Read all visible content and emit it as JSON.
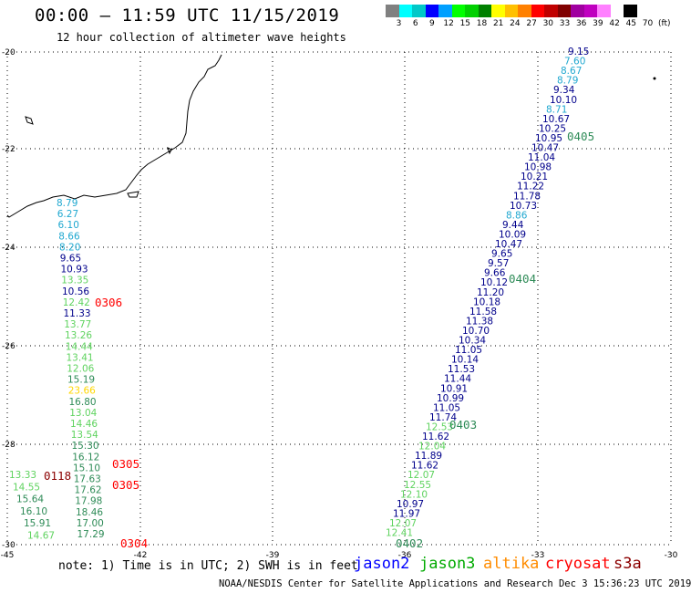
{
  "title": "00:00 – 11:59 UTC 11/15/2019",
  "subtitle": "12 hour collection of altimeter wave heights",
  "colorbar": {
    "colors": [
      "#808080",
      "#00ffff",
      "#00c8c8",
      "#0000ff",
      "#00a0ff",
      "#00ff00",
      "#00d000",
      "#008000",
      "#ffff00",
      "#ffc000",
      "#ff8000",
      "#ff0000",
      "#c00000",
      "#800000",
      "#a000a0",
      "#c000c0",
      "#ff80ff",
      "#ffffff",
      "#000000"
    ],
    "labels": [
      "3",
      "6",
      "9",
      "12",
      "15",
      "18",
      "21",
      "24",
      "27",
      "30",
      "33",
      "36",
      "39",
      "42",
      "45",
      "70"
    ],
    "unit": "(ft)"
  },
  "note": "note:  1) Time is in UTC;  2) SWH is in feet",
  "legend": [
    {
      "label": "jason2",
      "color": "#0000ff"
    },
    {
      "label": "jason3",
      "color": "#00aa00"
    },
    {
      "label": "altika",
      "color": "#ff8c00"
    },
    {
      "label": "cryosat",
      "color": "#ff0000"
    },
    {
      "label": "s3a",
      "color": "#8b0000"
    }
  ],
  "credit": "NOAA/NESDIS Center for Satellite Applications and Research    Dec  3 15:36:23 UTC 2019",
  "map": {
    "lon_range": [
      -45,
      -30
    ],
    "lat_range": [
      -30,
      -20
    ],
    "lon_ticks": [
      "-45",
      "-42",
      "-39",
      "-36",
      "-33",
      "-30"
    ],
    "lat_ticks": [
      "-20",
      "-22",
      "-24",
      "-26",
      "-28",
      "-30"
    ]
  },
  "obs_colors": {
    "jason2": "#00008b",
    "jason3": "#2e8b57",
    "altika": "#ffd700",
    "cryosat": "#ff0000",
    "s3a": "#8b0000",
    "light": "#5fd35f",
    "cyan": "#20a8d0"
  },
  "tracks": [
    {
      "name": "western-track",
      "values": [
        {
          "v": "8.79",
          "c": "cyan"
        },
        {
          "v": "6.27",
          "c": "cyan"
        },
        {
          "v": "6.10",
          "c": "cyan"
        },
        {
          "v": "8.66",
          "c": "cyan"
        },
        {
          "v": "8.20",
          "c": "cyan"
        },
        {
          "v": "9.65",
          "c": "jason2"
        },
        {
          "v": "10.93",
          "c": "jason2"
        },
        {
          "v": "13.35",
          "c": "light"
        },
        {
          "v": "10.56",
          "c": "jason2"
        },
        {
          "v": "12.42",
          "c": "light"
        },
        {
          "v": "11.33",
          "c": "jason2"
        },
        {
          "v": "13.77",
          "c": "light"
        },
        {
          "v": "13.26",
          "c": "light"
        },
        {
          "v": "14.44",
          "c": "light"
        },
        {
          "v": "13.41",
          "c": "light"
        },
        {
          "v": "12.06",
          "c": "light"
        },
        {
          "v": "15.19",
          "c": "jason3"
        },
        {
          "v": "23.66",
          "c": "altika"
        },
        {
          "v": "16.80",
          "c": "jason3"
        },
        {
          "v": "13.04",
          "c": "light"
        },
        {
          "v": "14.46",
          "c": "light"
        },
        {
          "v": "13.54",
          "c": "light"
        },
        {
          "v": "15.30",
          "c": "jason3"
        },
        {
          "v": "16.12",
          "c": "jason3"
        },
        {
          "v": "15.10",
          "c": "jason3"
        },
        {
          "v": "17.63",
          "c": "jason3"
        },
        {
          "v": "17.62",
          "c": "jason3"
        },
        {
          "v": "17.98",
          "c": "jason3"
        },
        {
          "v": "18.46",
          "c": "jason3"
        },
        {
          "v": "17.00",
          "c": "jason3"
        },
        {
          "v": "17.29",
          "c": "jason3"
        }
      ]
    },
    {
      "name": "eastern-track",
      "values": [
        {
          "v": "9.15",
          "c": "jason2"
        },
        {
          "v": "7.60",
          "c": "cyan"
        },
        {
          "v": "8.67",
          "c": "cyan"
        },
        {
          "v": "8.79",
          "c": "cyan"
        },
        {
          "v": "9.34",
          "c": "jason2"
        },
        {
          "v": "10.10",
          "c": "jason2"
        },
        {
          "v": "8.71",
          "c": "cyan"
        },
        {
          "v": "10.67",
          "c": "jason2"
        },
        {
          "v": "10.25",
          "c": "jason2"
        },
        {
          "v": "10.95",
          "c": "jason2"
        },
        {
          "v": "10.47",
          "c": "jason2"
        },
        {
          "v": "11.04",
          "c": "jason2"
        },
        {
          "v": "10.98",
          "c": "jason2"
        },
        {
          "v": "10.21",
          "c": "jason2"
        },
        {
          "v": "11.22",
          "c": "jason2"
        },
        {
          "v": "11.78",
          "c": "jason2"
        },
        {
          "v": "10.73",
          "c": "jason2"
        },
        {
          "v": "8.86",
          "c": "cyan"
        },
        {
          "v": "9.44",
          "c": "jason2"
        },
        {
          "v": "10.09",
          "c": "jason2"
        },
        {
          "v": "10.47",
          "c": "jason2"
        },
        {
          "v": "9.65",
          "c": "jason2"
        },
        {
          "v": "9.57",
          "c": "jason2"
        },
        {
          "v": "9.66",
          "c": "jason2"
        },
        {
          "v": "10.12",
          "c": "jason2"
        },
        {
          "v": "11.20",
          "c": "jason2"
        },
        {
          "v": "10.18",
          "c": "jason2"
        },
        {
          "v": "11.58",
          "c": "jason2"
        },
        {
          "v": "11.38",
          "c": "jason2"
        },
        {
          "v": "10.70",
          "c": "jason2"
        },
        {
          "v": "10.34",
          "c": "jason2"
        },
        {
          "v": "11.05",
          "c": "jason2"
        },
        {
          "v": "10.14",
          "c": "jason2"
        },
        {
          "v": "11.53",
          "c": "jason2"
        },
        {
          "v": "11.44",
          "c": "jason2"
        },
        {
          "v": "10.91",
          "c": "jason2"
        },
        {
          "v": "10.99",
          "c": "jason2"
        },
        {
          "v": "11.05",
          "c": "jason2"
        },
        {
          "v": "11.74",
          "c": "jason2"
        },
        {
          "v": "12.53",
          "c": "light"
        },
        {
          "v": "11.62",
          "c": "jason2"
        },
        {
          "v": "12.04",
          "c": "light"
        },
        {
          "v": "11.89",
          "c": "jason2"
        },
        {
          "v": "11.62",
          "c": "jason2"
        },
        {
          "v": "12.07",
          "c": "light"
        },
        {
          "v": "12.55",
          "c": "light"
        },
        {
          "v": "12.10",
          "c": "light"
        },
        {
          "v": "10.97",
          "c": "jason2"
        },
        {
          "v": "11.97",
          "c": "jason2"
        },
        {
          "v": "12.07",
          "c": "light"
        },
        {
          "v": "12.41",
          "c": "light"
        }
      ]
    },
    {
      "name": "far-west-track",
      "values": [
        {
          "v": "13.33",
          "c": "light"
        },
        {
          "v": "14.55",
          "c": "light"
        },
        {
          "v": "15.64",
          "c": "jason3"
        },
        {
          "v": "16.10",
          "c": "jason3"
        },
        {
          "v": "15.91",
          "c": "jason3"
        },
        {
          "v": "14.67",
          "c": "light"
        }
      ]
    }
  ],
  "time_labels": [
    {
      "v": "0405",
      "c": "jason3"
    },
    {
      "v": "0404",
      "c": "jason3"
    },
    {
      "v": "0403",
      "c": "jason3"
    },
    {
      "v": "0402",
      "c": "jason3"
    },
    {
      "v": "0306",
      "c": "cryosat"
    },
    {
      "v": "0305",
      "c": "cryosat"
    },
    {
      "v": "0305",
      "c": "cryosat"
    },
    {
      "v": "0304",
      "c": "cryosat"
    },
    {
      "v": "0118",
      "c": "s3a"
    }
  ]
}
